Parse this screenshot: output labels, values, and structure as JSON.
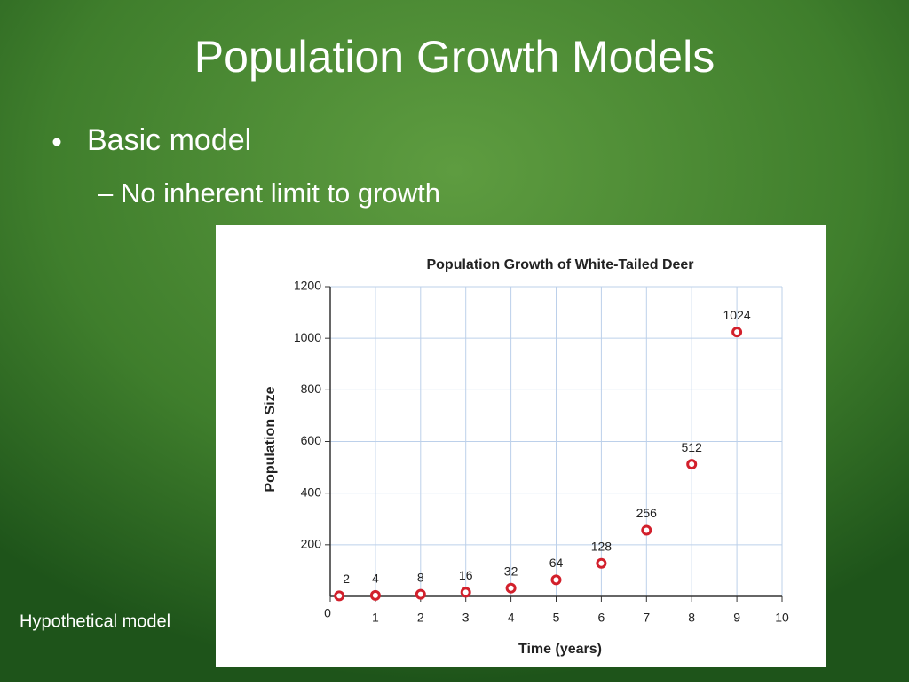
{
  "slide": {
    "title": "Population Growth Models",
    "bullet": "Basic model",
    "sub_bullet": "– No inherent limit to growth",
    "caption": "Hypothetical model"
  },
  "chart_data": {
    "type": "scatter",
    "title": "Population Growth of White-Tailed Deer",
    "x_label": "Time (years)",
    "y_label": "Population Size",
    "series": [
      {
        "name": "White-Tailed Deer",
        "color": "#d2202c",
        "x": [
          0.2,
          1,
          2,
          3,
          4,
          5,
          6,
          7,
          8,
          9
        ],
        "values": [
          2,
          4,
          8,
          16,
          32,
          64,
          128,
          256,
          512,
          1024
        ]
      }
    ],
    "xlim": [
      0,
      10
    ],
    "xticks": [
      0,
      1,
      2,
      3,
      4,
      5,
      6,
      7,
      8,
      9,
      10
    ],
    "ylim": [
      0,
      1200
    ],
    "yticks": [
      200,
      400,
      600,
      800,
      1000,
      1200
    ],
    "grid": true
  }
}
